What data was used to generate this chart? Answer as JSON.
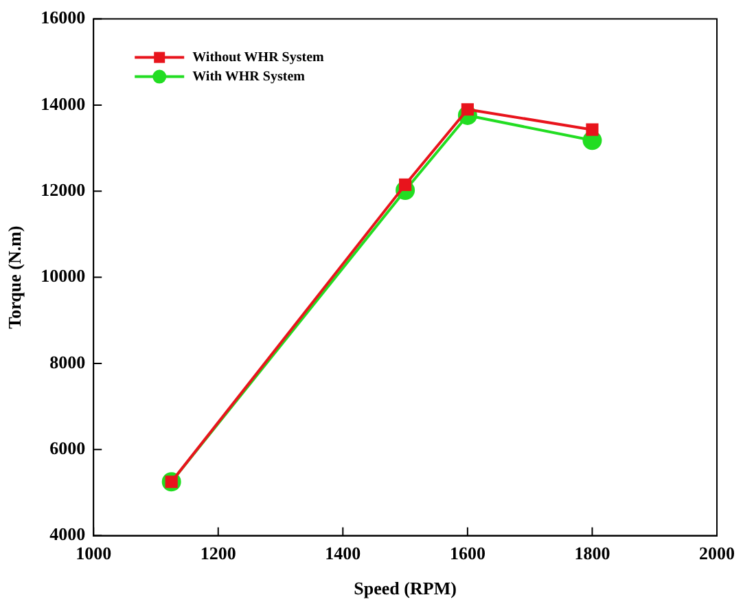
{
  "chart_data": {
    "type": "line",
    "xlabel": "Speed (RPM)",
    "ylabel": "Torque (N.m)",
    "xlim": [
      1000,
      2000
    ],
    "xticks": [
      1000,
      1200,
      1400,
      1600,
      1800,
      2000
    ],
    "ylim": [
      4000,
      16000
    ],
    "yticks": [
      4000,
      6000,
      8000,
      10000,
      12000,
      14000,
      16000
    ],
    "grid": false,
    "legend": "top left",
    "line_style": "solid",
    "series": [
      {
        "name": "Without WHR System",
        "color": "#e8141c",
        "marker": "square",
        "x": [
          1125,
          1500,
          1600,
          1800
        ],
        "values": [
          5250,
          12150,
          13900,
          13430
        ]
      },
      {
        "name": "With WHR System",
        "color": "#22dd22",
        "marker": "circle",
        "x": [
          1125,
          1500,
          1600,
          1800
        ],
        "values": [
          5250,
          12020,
          13760,
          13180
        ]
      }
    ]
  }
}
